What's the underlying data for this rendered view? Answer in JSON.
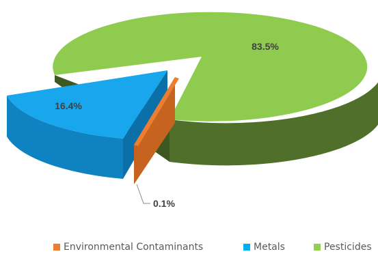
{
  "chart_data": {
    "type": "pie",
    "title": "",
    "categories": [
      "Environmental Contaminants",
      "Metals",
      "Pesticides"
    ],
    "values": [
      0.1,
      16.4,
      83.5
    ],
    "data_labels": [
      "0.1%",
      "16.4%",
      "83.5%"
    ],
    "colors": [
      "#ED7D31",
      "#00B0F0",
      "#92D050"
    ],
    "legend_position": "bottom",
    "style": "3d-exploded"
  },
  "legend": {
    "items": [
      {
        "label": "Environmental Contaminants",
        "color": "#ED7D31"
      },
      {
        "label": "Metals",
        "color": "#00B0F0"
      },
      {
        "label": "Pesticides",
        "color": "#92D050"
      }
    ]
  }
}
